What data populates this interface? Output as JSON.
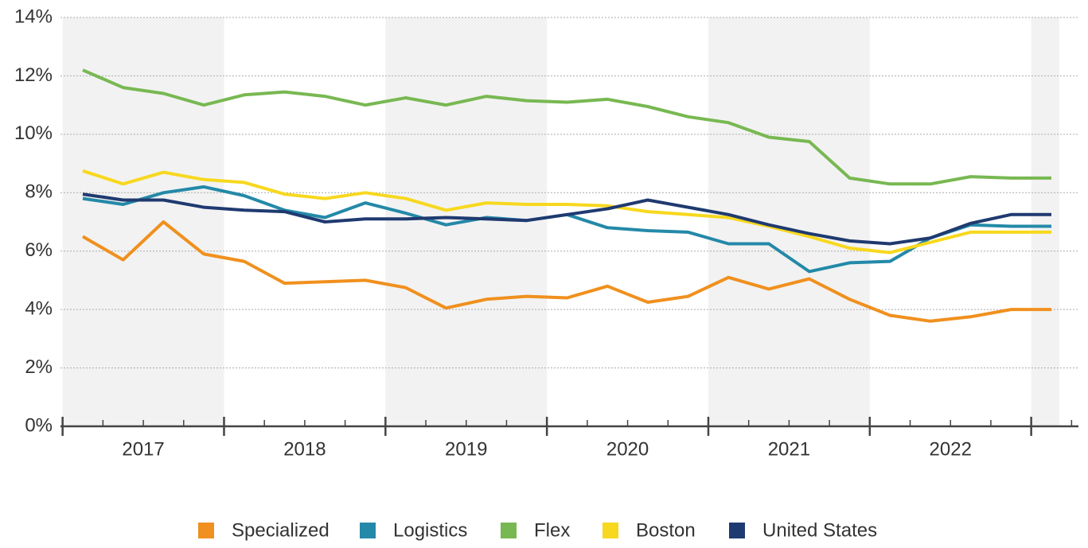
{
  "chart_data": {
    "type": "line",
    "categories": [
      null,
      "2017",
      null,
      null,
      null,
      "2018",
      null,
      null,
      null,
      "2019",
      null,
      null,
      null,
      "2020",
      null,
      null,
      null,
      "2021",
      null,
      null,
      null,
      "2022",
      null,
      null,
      null
    ],
    "ylim": [
      0,
      14
    ],
    "yticks": [
      {
        "value": 0,
        "label": "0%"
      },
      {
        "value": 2,
        "label": "2%"
      },
      {
        "value": 4,
        "label": "4%"
      },
      {
        "value": 6,
        "label": "6%"
      },
      {
        "value": 8,
        "label": "8%"
      },
      {
        "value": 10,
        "label": "10%"
      },
      {
        "value": 12,
        "label": "12%"
      },
      {
        "value": 14,
        "label": "14%"
      }
    ],
    "grid": true,
    "legend": "bottom",
    "series": [
      {
        "name": "Specialized",
        "color": "#f0901e",
        "values": [
          6.5,
          5.7,
          7.0,
          5.9,
          5.65,
          4.9,
          4.95,
          5.0,
          4.75,
          4.05,
          4.35,
          4.45,
          4.4,
          4.8,
          4.25,
          4.45,
          5.1,
          4.7,
          5.05,
          4.35,
          3.8,
          3.6,
          3.75,
          4.0,
          4.0
        ]
      },
      {
        "name": "Logistics",
        "color": "#2489a8",
        "values": [
          7.8,
          7.6,
          8.0,
          8.2,
          7.9,
          7.4,
          7.15,
          7.65,
          7.3,
          6.9,
          7.15,
          7.05,
          7.25,
          6.8,
          6.7,
          6.65,
          6.25,
          6.25,
          5.3,
          5.6,
          5.65,
          6.45,
          6.9,
          6.85,
          6.85
        ]
      },
      {
        "name": "Flex",
        "color": "#78b852",
        "values": [
          12.2,
          11.6,
          11.4,
          11.0,
          11.35,
          11.45,
          11.3,
          11.0,
          11.25,
          11.0,
          11.3,
          11.15,
          11.1,
          11.2,
          10.95,
          10.6,
          10.4,
          9.9,
          9.75,
          8.5,
          8.3,
          8.3,
          8.55,
          8.5,
          8.5
        ]
      },
      {
        "name": "Boston",
        "color": "#f7d81e",
        "values": [
          8.75,
          8.3,
          8.7,
          8.45,
          8.35,
          7.95,
          7.8,
          8.0,
          7.8,
          7.4,
          7.65,
          7.6,
          7.6,
          7.55,
          7.35,
          7.25,
          7.15,
          6.85,
          6.5,
          6.1,
          5.95,
          6.3,
          6.65,
          6.65,
          6.65
        ]
      },
      {
        "name": "United States",
        "color": "#1f3a70",
        "values": [
          7.95,
          7.75,
          7.75,
          7.5,
          7.4,
          7.35,
          7.0,
          7.1,
          7.1,
          7.15,
          7.1,
          7.05,
          7.25,
          7.45,
          7.75,
          7.5,
          7.25,
          6.9,
          6.6,
          6.35,
          6.25,
          6.45,
          6.95,
          7.25,
          7.25
        ]
      }
    ]
  }
}
